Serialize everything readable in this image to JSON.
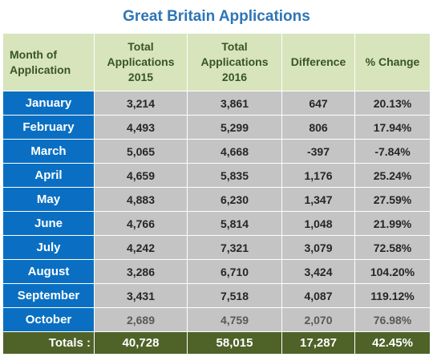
{
  "chart_data": {
    "type": "table",
    "title": "Great Britain Applications",
    "columns": [
      "Month of Application",
      "Total Applications 2015",
      "Total Applications 2016",
      "Difference",
      "% Change"
    ],
    "header_lines": [
      [
        "Month of",
        "Application"
      ],
      [
        "Total",
        "Applications",
        "2015"
      ],
      [
        "Total",
        "Applications",
        "2016"
      ],
      [
        "Difference"
      ],
      [
        "% Change"
      ]
    ],
    "rows": [
      [
        "January",
        "3,214",
        "3,861",
        "647",
        "20.13%"
      ],
      [
        "February",
        "4,493",
        "5,299",
        "806",
        "17.94%"
      ],
      [
        "March",
        "5,065",
        "4,668",
        "-397",
        "-7.84%"
      ],
      [
        "April",
        "4,659",
        "5,835",
        "1,176",
        "25.24%"
      ],
      [
        "May",
        "4,883",
        "6,230",
        "1,347",
        "27.59%"
      ],
      [
        "June",
        "4,766",
        "5,814",
        "1,048",
        "21.99%"
      ],
      [
        "July",
        "4,242",
        "7,321",
        "3,079",
        "72.58%"
      ],
      [
        "August",
        "3,286",
        "6,710",
        "3,424",
        "104.20%"
      ],
      [
        "September",
        "3,431",
        "7,518",
        "4,087",
        "119.12%"
      ],
      [
        "October",
        "2,689",
        "4,759",
        "2,070",
        "76.98%"
      ]
    ],
    "totals": [
      "Totals :",
      "40,728",
      "58,015",
      "17,287",
      "42.45%"
    ]
  },
  "colors": {
    "title": "#2e75b6",
    "header_bg": "#d8e4bc",
    "header_text": "#375623",
    "month_bg": "#0a6fc2",
    "value_bg": "#c4c4c4",
    "totals_bg": "#4f6228"
  }
}
